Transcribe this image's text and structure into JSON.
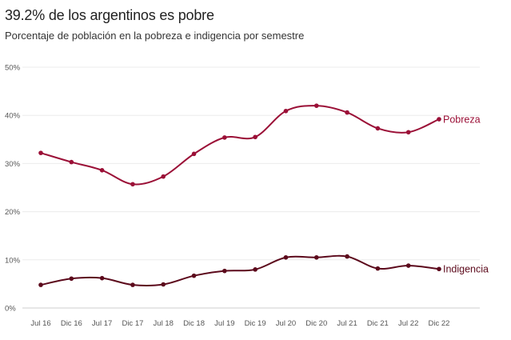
{
  "chart_data": {
    "type": "line",
    "title": "39.2% de los argentinos es pobre",
    "subtitle": "Porcentaje de población en la pobreza e indigencia por semestre",
    "categories": [
      "Jul 16",
      "Dic 16",
      "Jul 17",
      "Dic 17",
      "Jul 18",
      "Dic 18",
      "Jul 19",
      "Dic 19",
      "Jul 20",
      "Dic 20",
      "Jul 21",
      "Dic 21",
      "Jul 22",
      "Dic 22"
    ],
    "y_ticks": [
      "0%",
      "10%",
      "20%",
      "30%",
      "40%",
      "50%"
    ],
    "ylim": [
      0,
      50
    ],
    "grid": true,
    "series": [
      {
        "name": "Pobreza",
        "color": "#9b1037",
        "values": [
          32.2,
          30.3,
          28.6,
          25.7,
          27.3,
          32.0,
          35.4,
          35.5,
          40.9,
          42.0,
          40.6,
          37.3,
          36.5,
          39.2
        ]
      },
      {
        "name": "Indigencia",
        "color": "#5c0a1c",
        "values": [
          4.8,
          6.1,
          6.2,
          4.8,
          4.9,
          6.7,
          7.7,
          8.0,
          10.5,
          10.5,
          10.7,
          8.2,
          8.8,
          8.1
        ]
      }
    ]
  }
}
